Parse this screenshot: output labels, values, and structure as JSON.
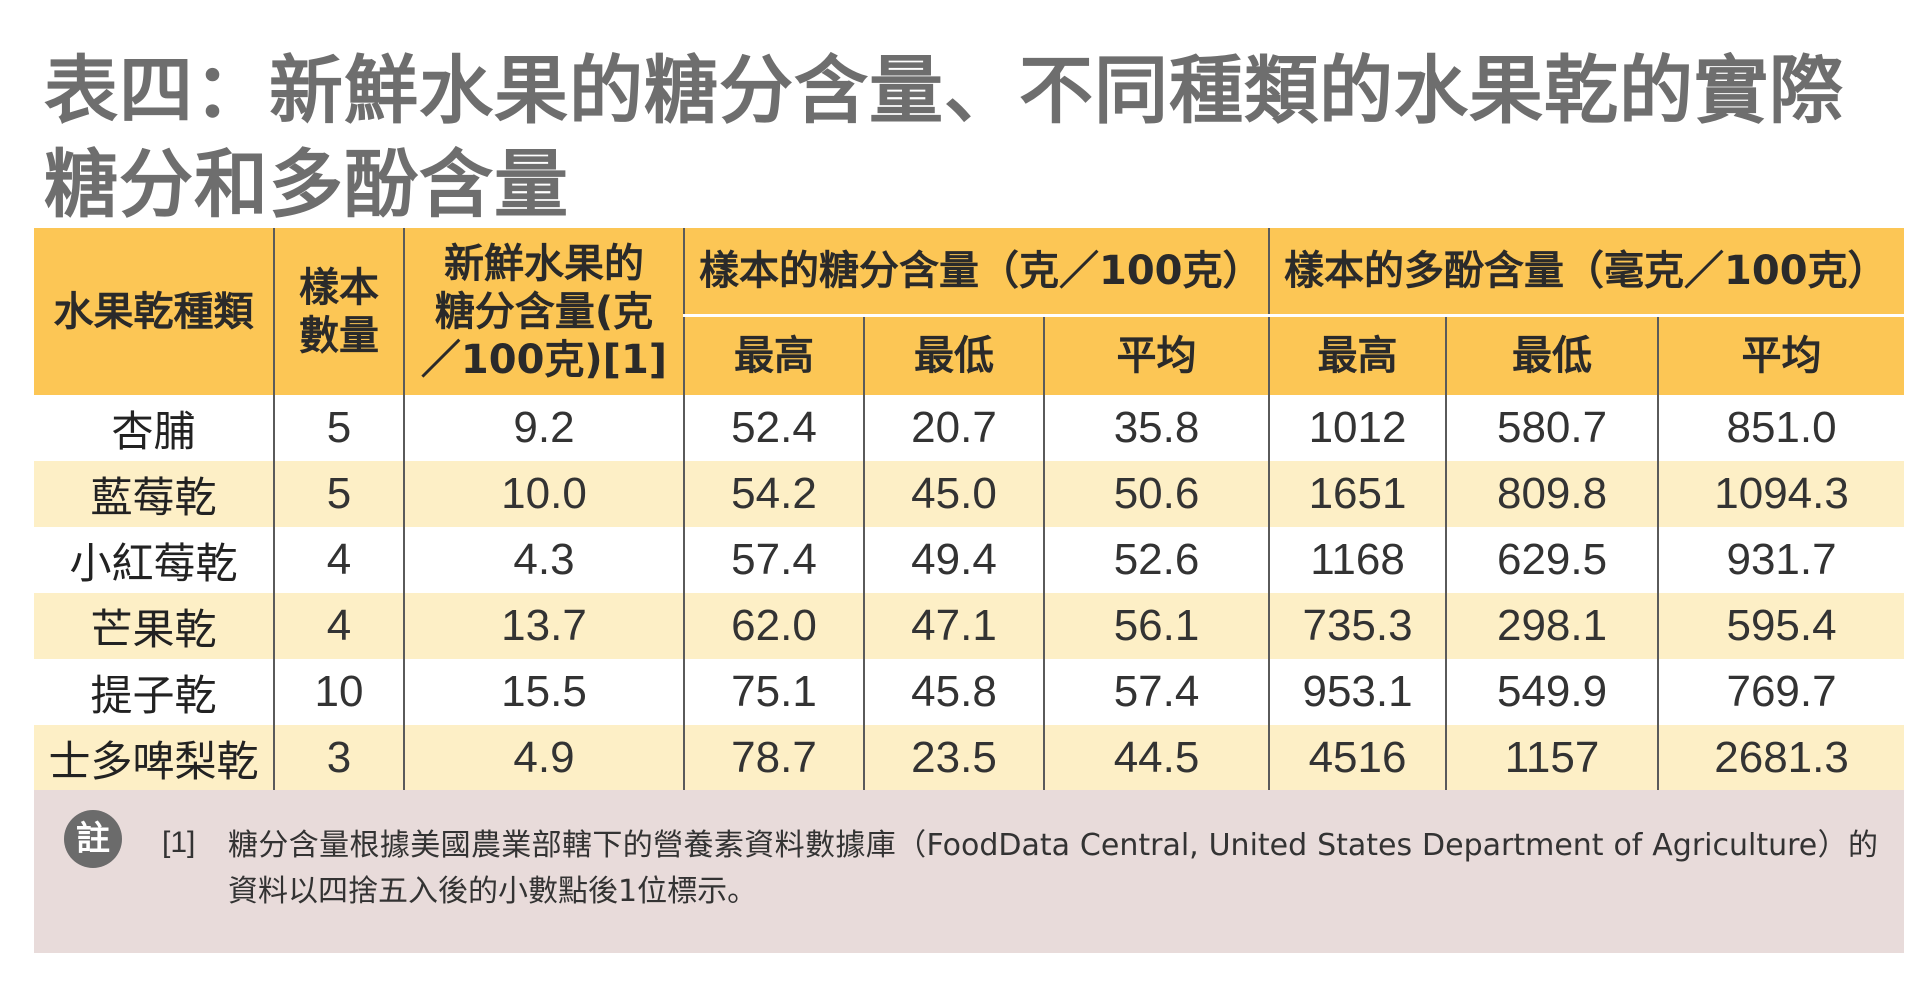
{
  "title": {
    "line1": "表四：新鮮水果的糖分含量、不同種類的水果乾的實際",
    "line2": "糖分和多酚含量"
  },
  "headers": {
    "fruit_type": "水果乾種類",
    "sample_count_1": "樣本",
    "sample_count_2": "數量",
    "fresh_sugar_1": "新鮮水果的",
    "fresh_sugar_2": "糖分含量(克",
    "fresh_sugar_3": "／100克)[1]",
    "sugar_group": "樣本的糖分含量（克／100克）",
    "polyphenol_group": "樣本的多酚含量（毫克／100克）",
    "max": "最高",
    "min": "最低",
    "avg": "平均"
  },
  "rows": [
    {
      "name": "杏脯",
      "n": "5",
      "fresh": "9.2",
      "s_max": "52.4",
      "s_min": "20.7",
      "s_avg": "35.8",
      "p_max": "1012",
      "p_min": "580.7",
      "p_avg": "851.0"
    },
    {
      "name": "藍莓乾",
      "n": "5",
      "fresh": "10.0",
      "s_max": "54.2",
      "s_min": "45.0",
      "s_avg": "50.6",
      "p_max": "1651",
      "p_min": "809.8",
      "p_avg": "1094.3"
    },
    {
      "name": "小紅莓乾",
      "n": "4",
      "fresh": "4.3",
      "s_max": "57.4",
      "s_min": "49.4",
      "s_avg": "52.6",
      "p_max": "1168",
      "p_min": "629.5",
      "p_avg": "931.7"
    },
    {
      "name": "芒果乾",
      "n": "4",
      "fresh": "13.7",
      "s_max": "62.0",
      "s_min": "47.1",
      "s_avg": "56.1",
      "p_max": "735.3",
      "p_min": "298.1",
      "p_avg": "595.4"
    },
    {
      "name": "提子乾",
      "n": "10",
      "fresh": "15.5",
      "s_max": "75.1",
      "s_min": "45.8",
      "s_avg": "57.4",
      "p_max": "953.1",
      "p_min": "549.9",
      "p_avg": "769.7"
    },
    {
      "name": "士多啤梨乾",
      "n": "3",
      "fresh": "4.9",
      "s_max": "78.7",
      "s_min": "23.5",
      "s_avg": "44.5",
      "p_max": "4516",
      "p_min": "1157",
      "p_avg": "2681.3"
    }
  ],
  "note": {
    "badge": "註",
    "ref": "[1]",
    "text": "糖分含量根據美國農業部轄下的營養素資料數據庫（FoodData Central, United States Department of Agriculture）的資料以四捨五入後的小數點後1位標示。"
  },
  "colors": {
    "header_bg": "#fcc655",
    "stripe_bg": "#fdefc6",
    "note_bg": "#e8dbda",
    "title_text": "#6e6e6e"
  }
}
